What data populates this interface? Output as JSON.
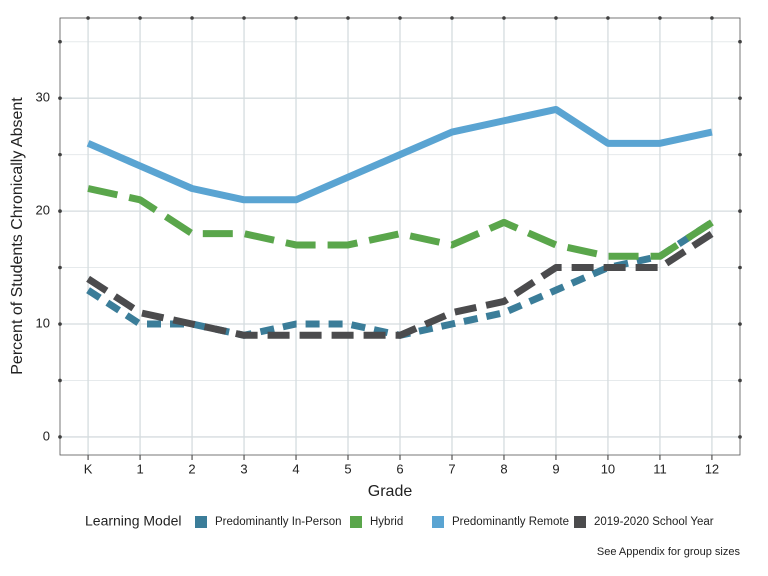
{
  "chart_data": {
    "type": "line",
    "x_label": "Grade",
    "y_label": "Percent of Students Chronically Absent",
    "categories": [
      "K",
      "1",
      "2",
      "3",
      "4",
      "5",
      "6",
      "7",
      "8",
      "9",
      "10",
      "11",
      "12"
    ],
    "series": [
      {
        "name": "Predominantly In-Person",
        "color": "#3b7d99",
        "dash": "14 9",
        "values": [
          13,
          10,
          10,
          9,
          10,
          10,
          9,
          10,
          11,
          13,
          15,
          16,
          19
        ]
      },
      {
        "name": "Hybrid",
        "color": "#5aa64b",
        "dash": "30 12",
        "values": [
          22,
          21,
          18,
          18,
          17,
          17,
          18,
          17,
          19,
          17,
          16,
          16,
          19
        ]
      },
      {
        "name": "Predominantly Remote",
        "color": "#5aa4d2",
        "dash": "",
        "values": [
          26,
          24,
          22,
          21,
          21,
          23,
          25,
          27,
          28,
          29,
          26,
          26,
          27
        ]
      },
      {
        "name": "2019-2020 School Year",
        "color": "#4b4b4d",
        "dash": "22 10",
        "values": [
          14,
          11,
          10,
          9,
          9,
          9,
          9,
          11,
          12,
          15,
          15,
          15,
          18
        ]
      }
    ],
    "ylim": [
      -1.6,
      37.1
    ],
    "yticks": [
      0,
      10,
      20,
      30
    ],
    "minor_yticks": [
      5,
      15,
      25,
      35
    ],
    "grid": true,
    "legend_title": "Learning Model",
    "legend": "bottom",
    "caption": "See Appendix for group sizes"
  }
}
